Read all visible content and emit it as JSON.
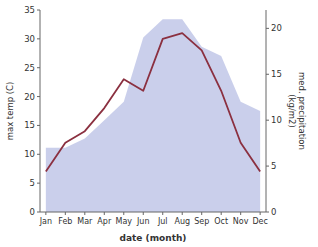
{
  "chart_data": {
    "type": "line",
    "categories": [
      "Jan",
      "Feb",
      "Mar",
      "Apr",
      "May",
      "Jun",
      "Jul",
      "Aug",
      "Sep",
      "Oct",
      "Nov",
      "Dec"
    ],
    "series": [
      {
        "type": "area",
        "axis": "y2",
        "color": "#adb5e0",
        "values": [
          7,
          7,
          8,
          10,
          12,
          19,
          21,
          21,
          18,
          17,
          12,
          11
        ]
      },
      {
        "type": "line",
        "color": "#8b3040",
        "values": [
          7,
          12,
          14,
          18,
          23,
          21,
          30,
          31,
          28,
          21,
          12,
          7
        ]
      }
    ],
    "x_label": "date (month)",
    "y_label": "max temp (C)",
    "y2_label": "med. precipitation\n(kg/m2)",
    "ylim": [
      0,
      35
    ],
    "yticks": [
      0,
      5,
      10,
      15,
      20,
      25,
      30,
      35
    ],
    "y2lim": [
      0,
      22
    ],
    "y2ticks": [
      0,
      5,
      10,
      15,
      20
    ],
    "grid": false
  }
}
